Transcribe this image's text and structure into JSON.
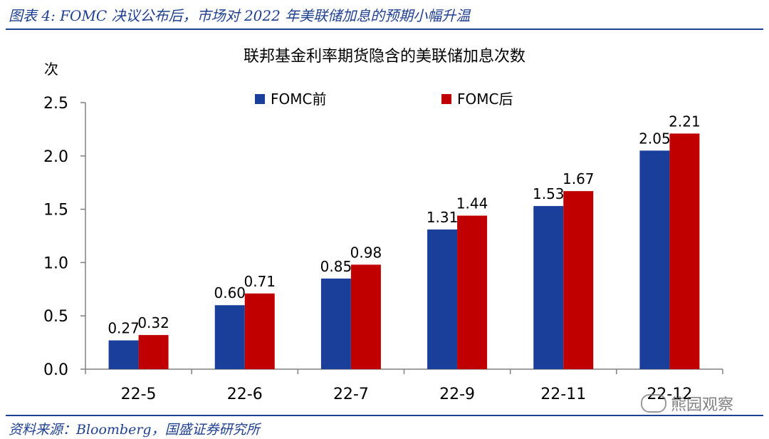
{
  "figure": {
    "caption": "图表 4: FOMC 决议公布后，市场对 2022 年美联储加息的预期小幅升温",
    "source": "资料来源：Bloomberg，国盛证券研究所",
    "watermark": "熊园观察"
  },
  "colors": {
    "accent": "#1f3f8f",
    "before": "#1a3f9b",
    "after": "#c00000"
  },
  "chart_data": {
    "type": "bar",
    "title": "联邦基金利率期货隐含的美联储加息次数",
    "ylabel": "次",
    "xlabel": "",
    "ylim": [
      0,
      2.5
    ],
    "yticks": [
      "0.0",
      "0.5",
      "1.0",
      "1.5",
      "2.0",
      "2.5"
    ],
    "categories": [
      "22-5",
      "22-6",
      "22-7",
      "22-9",
      "22-11",
      "22-12"
    ],
    "series": [
      {
        "name": "FOMC前",
        "values": [
          0.27,
          0.6,
          0.85,
          1.31,
          1.53,
          2.05
        ],
        "labels": [
          "0.27",
          "0.60",
          "0.85",
          "1.31",
          "1.53",
          "2.05"
        ]
      },
      {
        "name": "FOMC后",
        "values": [
          0.32,
          0.71,
          0.98,
          1.44,
          1.67,
          2.21
        ],
        "labels": [
          "0.32",
          "0.71",
          "0.98",
          "1.44",
          "1.67",
          "2.21"
        ]
      }
    ],
    "legend": "top-center",
    "grid": false
  }
}
